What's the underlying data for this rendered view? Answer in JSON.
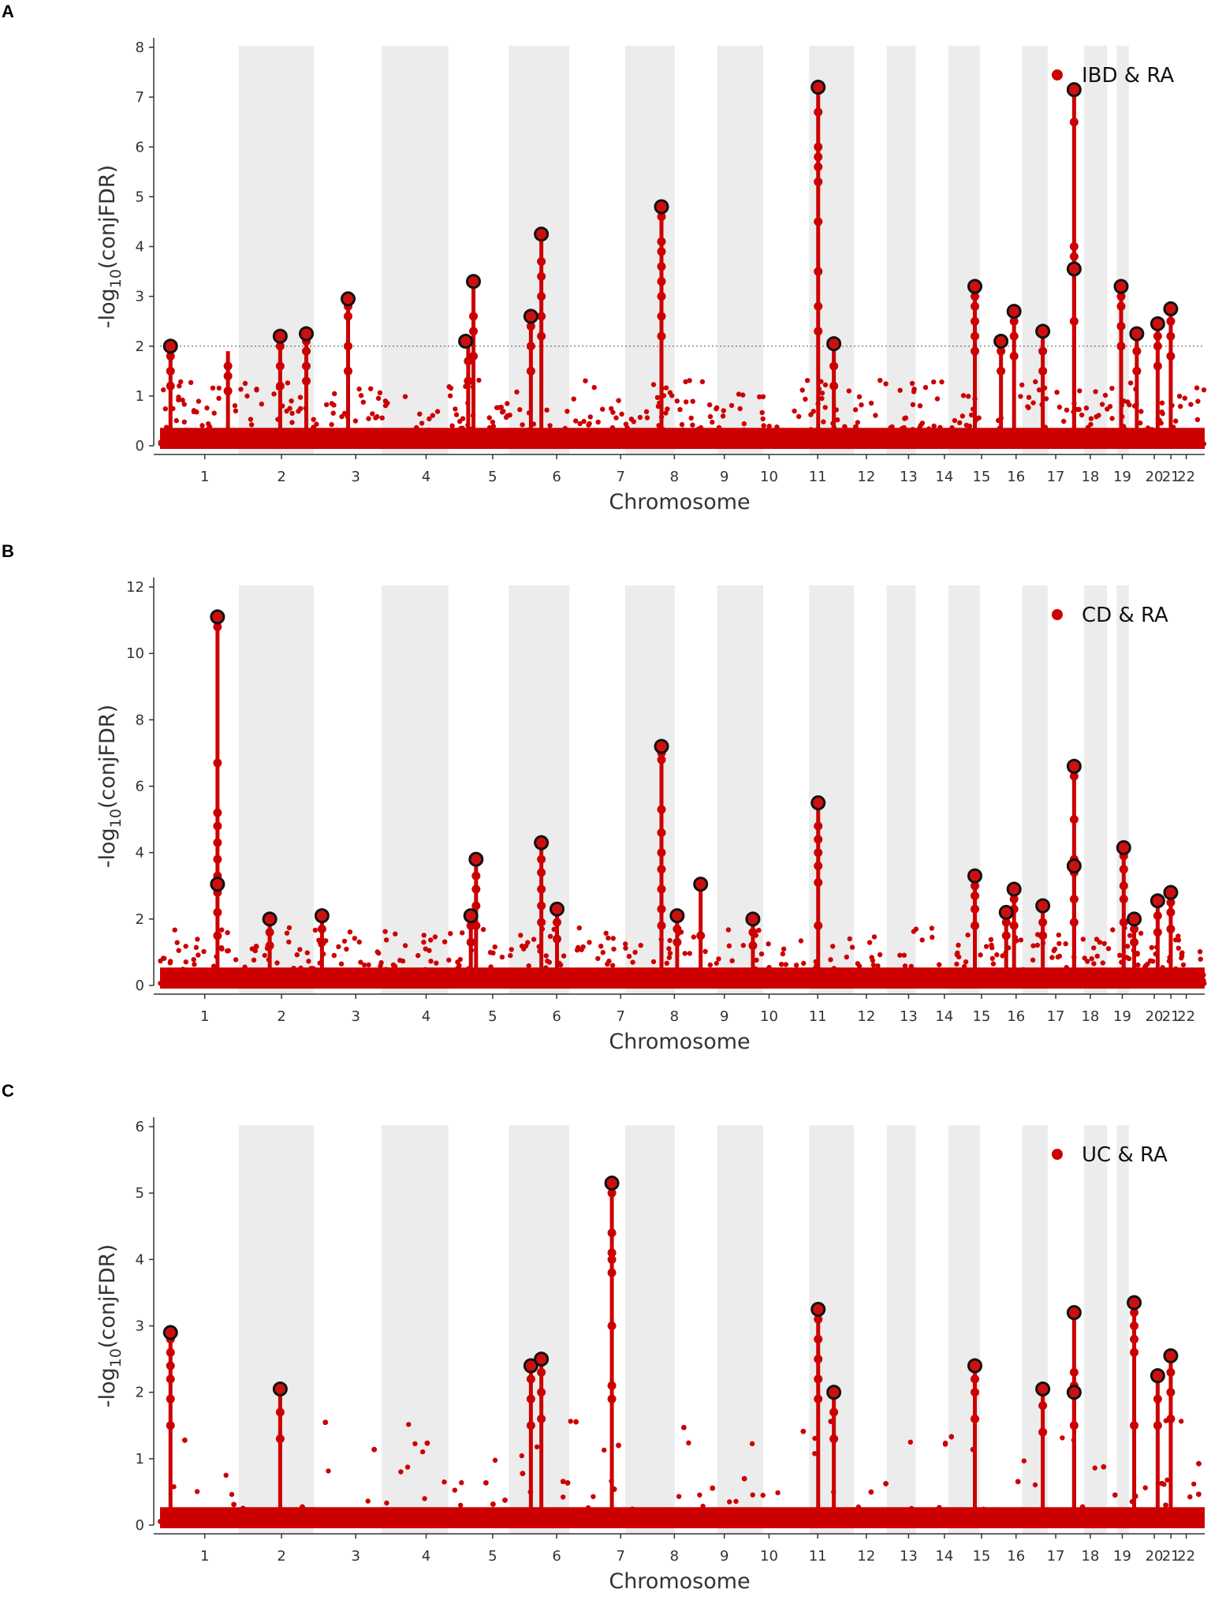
{
  "colors": {
    "point": "#cc0000",
    "lead_fill": "#cc1010",
    "lead_stroke": "#111111",
    "band": "#ececec",
    "axis": "#333333",
    "threshold": "#555555"
  },
  "chart_data": [
    {
      "type": "scatter",
      "panel": "A",
      "legend": "IBD & RA",
      "xlabel": "Chromosome",
      "ylabel_prefix": "-log",
      "ylabel_sub": "10",
      "ylabel_suffix": "(conjFDR)",
      "ylim": [
        0,
        8
      ],
      "yticks": [
        0,
        1,
        2,
        3,
        4,
        5,
        6,
        7,
        8
      ],
      "threshold": 2,
      "chromosomes": [
        "1",
        "2",
        "3",
        "4",
        "5",
        "6",
        "7",
        "8",
        "9",
        "10",
        "11",
        "12",
        "13",
        "14",
        "15",
        "16",
        "17",
        "18",
        "19",
        "20",
        "21",
        "22"
      ],
      "columns": [
        {
          "pos": 0.2,
          "top": 2.0,
          "vals": [
            1.2,
            1.5,
            1.8
          ]
        },
        {
          "pos": 1.3,
          "top": 1.9,
          "vals": [
            1.1,
            1.4,
            1.6
          ]
        },
        {
          "pos": 2.3,
          "top": 2.2,
          "vals": [
            1.2,
            1.6,
            2.0
          ]
        },
        {
          "pos": 2.8,
          "top": 2.2,
          "vals": [
            1.3,
            1.6,
            1.9,
            2.1
          ]
        },
        {
          "pos": 3.6,
          "top": 2.95,
          "vals": [
            1.5,
            2.0,
            2.6,
            2.8
          ]
        },
        {
          "pos": 5.9,
          "top": 2.1,
          "vals": [
            1.3,
            1.7
          ]
        },
        {
          "pos": 6.0,
          "top": 3.3,
          "vals": [
            1.8,
            2.3,
            2.6
          ]
        },
        {
          "pos": 7.1,
          "top": 2.6,
          "vals": [
            1.5,
            2.0,
            2.4
          ]
        },
        {
          "pos": 7.3,
          "top": 4.25,
          "vals": [
            2.2,
            2.6,
            3.0,
            3.4,
            3.7
          ]
        },
        {
          "pos": 9.6,
          "top": 4.8,
          "vals": [
            2.2,
            2.6,
            3.0,
            3.3,
            3.6,
            3.9,
            4.1,
            4.6
          ]
        },
        {
          "pos": 12.6,
          "top": 7.2,
          "vals": [
            2.3,
            2.8,
            3.5,
            4.5,
            5.3,
            5.6,
            5.8,
            6.0,
            6.7
          ]
        },
        {
          "pos": 12.9,
          "top": 2.05,
          "vals": [
            1.2,
            1.6
          ]
        },
        {
          "pos": 15.6,
          "top": 3.2,
          "vals": [
            1.9,
            2.2,
            2.5,
            2.8,
            3.0
          ]
        },
        {
          "pos": 16.1,
          "top": 2.1,
          "vals": [
            1.5,
            1.9
          ]
        },
        {
          "pos": 16.35,
          "top": 2.7,
          "vals": [
            1.8,
            2.2,
            2.5
          ]
        },
        {
          "pos": 16.9,
          "top": 2.3,
          "vals": [
            1.5,
            1.9
          ]
        },
        {
          "pos": 17.5,
          "top": 7.15,
          "vals": [
            2.5,
            3.5,
            3.8,
            4.0,
            6.5
          ]
        },
        {
          "pos": 17.5,
          "top": 3.55,
          "vals": []
        },
        {
          "pos": 18.4,
          "top": 3.2,
          "vals": [
            2.0,
            2.4,
            2.8,
            3.0
          ]
        },
        {
          "pos": 18.7,
          "top": 2.25,
          "vals": [
            1.5,
            1.9
          ]
        },
        {
          "pos": 19.1,
          "top": 2.45,
          "vals": [
            1.6,
            2.0,
            2.2
          ]
        },
        {
          "pos": 19.35,
          "top": 2.75,
          "vals": [
            1.8,
            2.2,
            2.5
          ]
        }
      ],
      "leads": [
        {
          "pos": 0.2,
          "y": 2.0
        },
        {
          "pos": 2.3,
          "y": 2.2
        },
        {
          "pos": 2.8,
          "y": 2.25
        },
        {
          "pos": 3.6,
          "y": 2.95
        },
        {
          "pos": 5.85,
          "y": 2.1
        },
        {
          "pos": 6.0,
          "y": 3.3
        },
        {
          "pos": 7.1,
          "y": 2.6
        },
        {
          "pos": 7.3,
          "y": 4.25
        },
        {
          "pos": 9.6,
          "y": 4.8
        },
        {
          "pos": 12.6,
          "y": 7.2
        },
        {
          "pos": 12.9,
          "y": 2.05
        },
        {
          "pos": 15.6,
          "y": 3.2
        },
        {
          "pos": 16.1,
          "y": 2.1
        },
        {
          "pos": 16.35,
          "y": 2.7
        },
        {
          "pos": 16.9,
          "y": 2.3
        },
        {
          "pos": 17.5,
          "y": 7.15
        },
        {
          "pos": 17.5,
          "y": 3.55
        },
        {
          "pos": 18.4,
          "y": 3.2
        },
        {
          "pos": 18.7,
          "y": 2.25
        },
        {
          "pos": 19.1,
          "y": 2.45
        },
        {
          "pos": 19.35,
          "y": 2.75
        }
      ]
    },
    {
      "type": "scatter",
      "panel": "B",
      "legend": "CD & RA",
      "xlabel": "Chromosome",
      "ylabel_prefix": "-log",
      "ylabel_sub": "10",
      "ylabel_suffix": "(conjFDR)",
      "ylim": [
        0,
        12
      ],
      "yticks": [
        0,
        2,
        4,
        6,
        8,
        10,
        12
      ],
      "threshold": null,
      "chromosomes": [
        "1",
        "2",
        "3",
        "4",
        "5",
        "6",
        "7",
        "8",
        "9",
        "10",
        "11",
        "12",
        "13",
        "14",
        "15",
        "16",
        "17",
        "18",
        "19",
        "20",
        "21",
        "22"
      ],
      "columns": [
        {
          "pos": 1.1,
          "top": 11.1,
          "vals": [
            1.5,
            2.2,
            2.8,
            3.3,
            3.8,
            4.3,
            4.8,
            5.2,
            6.7,
            10.8
          ]
        },
        {
          "pos": 2.1,
          "top": 2.0,
          "vals": [
            1.2,
            1.6
          ]
        },
        {
          "pos": 3.1,
          "top": 2.1,
          "vals": [
            1.3,
            1.7
          ]
        },
        {
          "pos": 5.95,
          "top": 2.1,
          "vals": [
            1.3,
            1.8
          ]
        },
        {
          "pos": 6.05,
          "top": 3.8,
          "vals": [
            1.8,
            2.4,
            2.9,
            3.3
          ]
        },
        {
          "pos": 7.3,
          "top": 4.3,
          "vals": [
            1.9,
            2.4,
            2.9,
            3.4,
            3.8
          ]
        },
        {
          "pos": 7.6,
          "top": 2.3,
          "vals": [
            1.4,
            1.9
          ]
        },
        {
          "pos": 9.6,
          "top": 7.2,
          "vals": [
            1.8,
            2.3,
            2.9,
            3.5,
            4.0,
            4.6,
            5.3,
            6.8,
            7.0
          ]
        },
        {
          "pos": 9.9,
          "top": 2.1,
          "vals": [
            1.3,
            1.7
          ]
        },
        {
          "pos": 10.35,
          "top": 3.05,
          "vals": [
            1.5
          ]
        },
        {
          "pos": 11.35,
          "top": 2.0,
          "vals": [
            1.2,
            1.6
          ]
        },
        {
          "pos": 12.6,
          "top": 5.5,
          "vals": [
            1.8,
            3.1,
            3.6,
            4.0,
            4.4,
            4.8
          ]
        },
        {
          "pos": 15.6,
          "top": 3.3,
          "vals": [
            1.8,
            2.3,
            2.7,
            3.0
          ]
        },
        {
          "pos": 16.2,
          "top": 2.2,
          "vals": [
            1.5,
            1.9
          ]
        },
        {
          "pos": 16.35,
          "top": 2.9,
          "vals": [
            1.8,
            2.3,
            2.6
          ]
        },
        {
          "pos": 16.9,
          "top": 2.4,
          "vals": [
            1.5,
            1.9
          ]
        },
        {
          "pos": 17.5,
          "top": 6.6,
          "vals": [
            1.9,
            2.6,
            3.4,
            3.8,
            5.0,
            6.3
          ]
        },
        {
          "pos": 17.5,
          "top": 3.6,
          "vals": []
        },
        {
          "pos": 18.45,
          "top": 4.15,
          "vals": [
            1.9,
            2.6,
            3.0,
            3.5,
            3.9
          ]
        },
        {
          "pos": 18.65,
          "top": 2.0,
          "vals": [
            1.3,
            1.7
          ]
        },
        {
          "pos": 19.1,
          "top": 2.55,
          "vals": [
            1.6,
            2.1
          ]
        },
        {
          "pos": 19.35,
          "top": 2.8,
          "vals": [
            1.7,
            2.2,
            2.5
          ]
        }
      ],
      "leads": [
        {
          "pos": 1.1,
          "y": 11.1
        },
        {
          "pos": 1.1,
          "y": 3.05
        },
        {
          "pos": 2.1,
          "y": 2.0
        },
        {
          "pos": 3.1,
          "y": 2.1
        },
        {
          "pos": 5.95,
          "y": 2.1
        },
        {
          "pos": 6.05,
          "y": 3.8
        },
        {
          "pos": 7.3,
          "y": 4.3
        },
        {
          "pos": 7.6,
          "y": 2.3
        },
        {
          "pos": 9.6,
          "y": 7.2
        },
        {
          "pos": 9.9,
          "y": 2.1
        },
        {
          "pos": 10.35,
          "y": 3.05
        },
        {
          "pos": 11.35,
          "y": 2.0
        },
        {
          "pos": 12.6,
          "y": 5.5
        },
        {
          "pos": 15.6,
          "y": 3.3
        },
        {
          "pos": 16.2,
          "y": 2.2
        },
        {
          "pos": 16.35,
          "y": 2.9
        },
        {
          "pos": 16.9,
          "y": 2.4
        },
        {
          "pos": 17.5,
          "y": 6.6
        },
        {
          "pos": 17.5,
          "y": 3.6
        },
        {
          "pos": 18.45,
          "y": 4.15
        },
        {
          "pos": 18.65,
          "y": 2.0
        },
        {
          "pos": 19.1,
          "y": 2.55
        },
        {
          "pos": 19.35,
          "y": 2.8
        }
      ]
    },
    {
      "type": "scatter",
      "panel": "C",
      "legend": "UC & RA",
      "xlabel": "Chromosome",
      "ylabel_prefix": "-log",
      "ylabel_sub": "10",
      "ylabel_suffix": "(conjFDR)",
      "ylim": [
        0,
        6
      ],
      "yticks": [
        0,
        1,
        2,
        3,
        4,
        5,
        6
      ],
      "threshold": null,
      "chromosomes": [
        "1",
        "2",
        "3",
        "4",
        "5",
        "6",
        "7",
        "8",
        "9",
        "10",
        "11",
        "12",
        "13",
        "14",
        "15",
        "16",
        "17",
        "18",
        "19",
        "20",
        "21",
        "22"
      ],
      "columns": [
        {
          "pos": 0.2,
          "top": 2.9,
          "vals": [
            1.5,
            1.9,
            2.2,
            2.4,
            2.6,
            2.8
          ]
        },
        {
          "pos": 2.3,
          "top": 2.05,
          "vals": [
            1.3,
            1.7
          ]
        },
        {
          "pos": 7.1,
          "top": 2.4,
          "vals": [
            1.5,
            1.9,
            2.2
          ]
        },
        {
          "pos": 7.3,
          "top": 2.5,
          "vals": [
            1.6,
            2.0,
            2.3
          ]
        },
        {
          "pos": 8.65,
          "top": 5.15,
          "vals": [
            1.9,
            2.1,
            3.0,
            3.8,
            4.0,
            4.1,
            4.4,
            5.0
          ]
        },
        {
          "pos": 12.6,
          "top": 3.25,
          "vals": [
            1.9,
            2.2,
            2.5,
            2.8,
            3.1
          ]
        },
        {
          "pos": 12.9,
          "top": 2.0,
          "vals": [
            1.3,
            1.7
          ]
        },
        {
          "pos": 15.6,
          "top": 2.4,
          "vals": [
            1.6,
            2.0,
            2.2
          ]
        },
        {
          "pos": 16.9,
          "top": 2.05,
          "vals": [
            1.4,
            1.8
          ]
        },
        {
          "pos": 17.5,
          "top": 3.2,
          "vals": [
            1.5,
            2.1,
            2.3
          ]
        },
        {
          "pos": 17.5,
          "top": 2.0,
          "vals": []
        },
        {
          "pos": 18.65,
          "top": 3.35,
          "vals": [
            1.5,
            2.6,
            2.8,
            3.0,
            3.2
          ]
        },
        {
          "pos": 19.1,
          "top": 2.25,
          "vals": [
            1.5,
            1.9
          ]
        },
        {
          "pos": 19.35,
          "top": 2.55,
          "vals": [
            1.6,
            2.0,
            2.3
          ]
        }
      ],
      "leads": [
        {
          "pos": 0.2,
          "y": 2.9
        },
        {
          "pos": 2.3,
          "y": 2.05
        },
        {
          "pos": 7.1,
          "y": 2.4
        },
        {
          "pos": 7.3,
          "y": 2.5
        },
        {
          "pos": 8.65,
          "y": 5.15
        },
        {
          "pos": 12.6,
          "y": 3.25
        },
        {
          "pos": 12.9,
          "y": 2.0
        },
        {
          "pos": 15.6,
          "y": 2.4
        },
        {
          "pos": 16.9,
          "y": 2.05
        },
        {
          "pos": 17.5,
          "y": 3.2
        },
        {
          "pos": 17.5,
          "y": 2.0
        },
        {
          "pos": 18.65,
          "y": 3.35
        },
        {
          "pos": 19.1,
          "y": 2.25
        },
        {
          "pos": 19.35,
          "y": 2.55
        }
      ]
    }
  ]
}
